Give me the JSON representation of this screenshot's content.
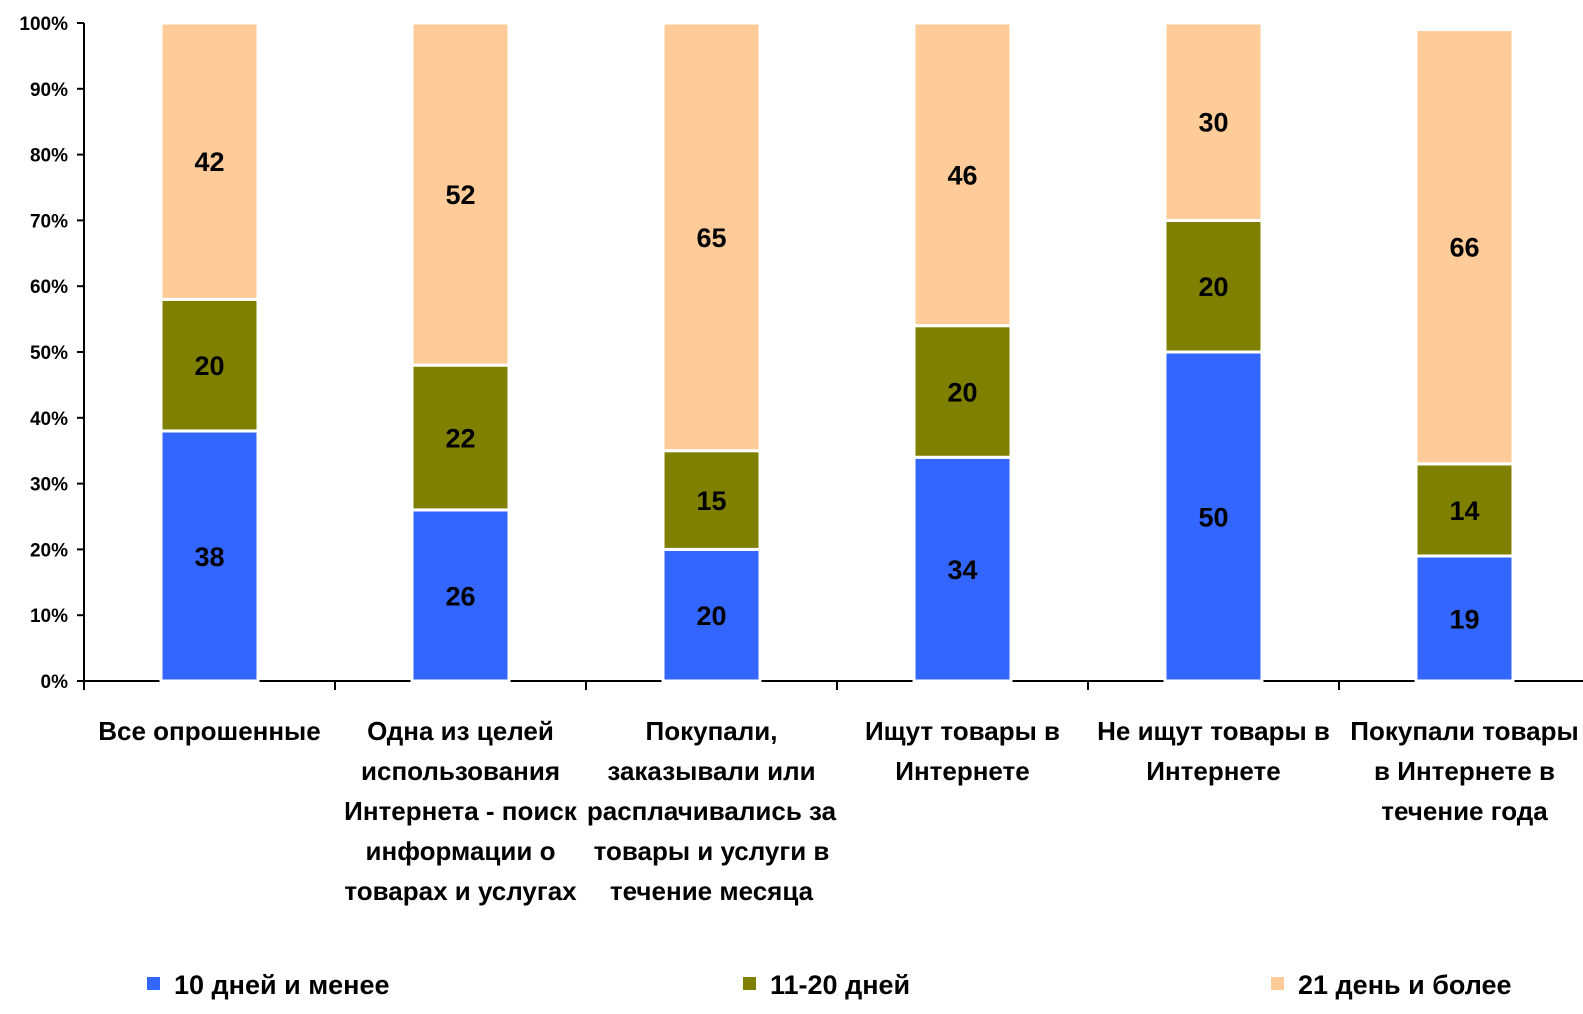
{
  "chart_data": {
    "type": "bar",
    "stacked": true,
    "percent_stacked": true,
    "categories": [
      "Все опрошенные",
      "Одна из целей использования Интернета - поиск информации о товарах и услугах",
      "Покупали, заказывали или расплачивались за товары и услуги в течение месяца",
      "Ищут товары в Интернете",
      "Не ищут товары в Интернете",
      "Покупали товары в Интернете  в течение года"
    ],
    "category_lines": [
      [
        "Все опрошенные"
      ],
      [
        "Одна из целей",
        "использования",
        "Интернета - поиск",
        "информации о",
        "товарах и услугах"
      ],
      [
        "Покупали,",
        "заказывали или",
        "расплачивались за",
        "товары и услуги в",
        "течение месяца"
      ],
      [
        "Ищут товары в",
        "Интернете"
      ],
      [
        "Не ищут товары в",
        "Интернете"
      ],
      [
        "Покупали товары",
        "в Интернете  в",
        "течение года"
      ]
    ],
    "series": [
      {
        "name": "10 дней и менее",
        "values": [
          38,
          26,
          20,
          34,
          50,
          19
        ],
        "color": "#3366FF"
      },
      {
        "name": "11-20 дней",
        "values": [
          20,
          22,
          15,
          20,
          20,
          14
        ],
        "color": "#808000"
      },
      {
        "name": "21 день и более",
        "values": [
          42,
          52,
          65,
          46,
          30,
          66
        ],
        "color": "#FFCC99"
      }
    ],
    "y_ticks": [
      "0%",
      "10%",
      "20%",
      "30%",
      "40%",
      "50%",
      "60%",
      "70%",
      "80%",
      "90%",
      "100%"
    ],
    "ylim": [
      0,
      100
    ],
    "grid": false,
    "legend_position": "bottom",
    "title": "",
    "xlabel": "",
    "ylabel": ""
  }
}
